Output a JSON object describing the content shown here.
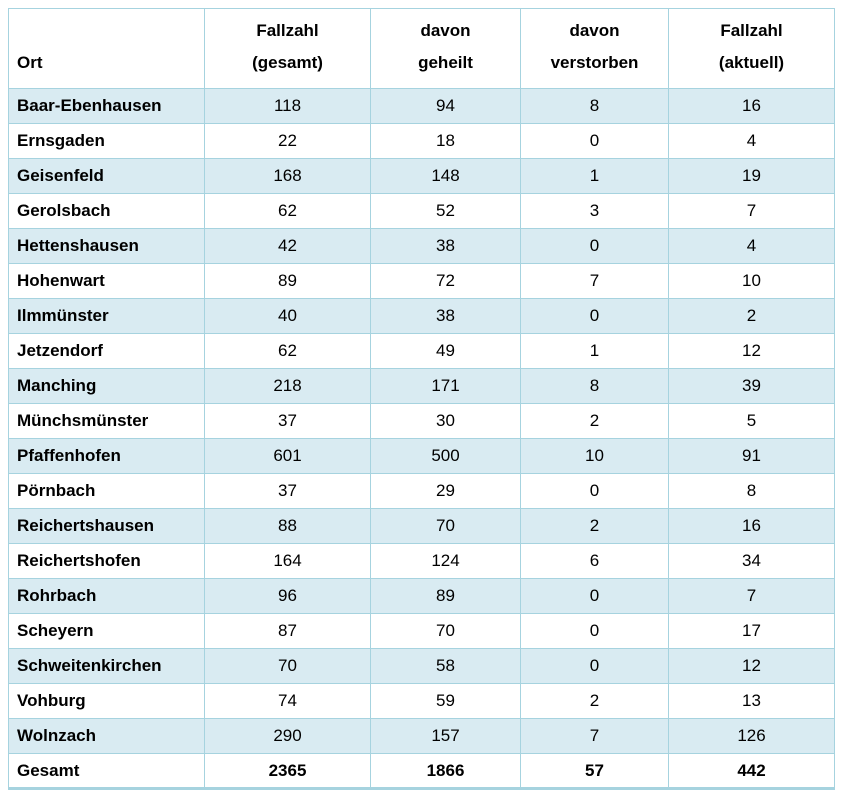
{
  "chart_data": {
    "type": "table",
    "columns": [
      "Ort",
      "Fallzahl\n(gesamt)",
      "davon\ngeheilt",
      "davon\nverstorben",
      "Fallzahl\n(aktuell)"
    ],
    "rows": [
      [
        "Baar-Ebenhausen",
        118,
        94,
        8,
        16
      ],
      [
        "Ernsgaden",
        22,
        18,
        0,
        4
      ],
      [
        "Geisenfeld",
        168,
        148,
        1,
        19
      ],
      [
        "Gerolsbach",
        62,
        52,
        3,
        7
      ],
      [
        "Hettenshausen",
        42,
        38,
        0,
        4
      ],
      [
        "Hohenwart",
        89,
        72,
        7,
        10
      ],
      [
        "Ilmmünster",
        40,
        38,
        0,
        2
      ],
      [
        "Jetzendorf",
        62,
        49,
        1,
        12
      ],
      [
        "Manching",
        218,
        171,
        8,
        39
      ],
      [
        "Münchsmünster",
        37,
        30,
        2,
        5
      ],
      [
        "Pfaffenhofen",
        601,
        500,
        10,
        91
      ],
      [
        "Pörnbach",
        37,
        29,
        0,
        8
      ],
      [
        "Reichertshausen",
        88,
        70,
        2,
        16
      ],
      [
        "Reichertshofen",
        164,
        124,
        6,
        34
      ],
      [
        "Rohrbach",
        96,
        89,
        0,
        7
      ],
      [
        "Scheyern",
        87,
        70,
        0,
        17
      ],
      [
        "Schweitenkirchen",
        70,
        58,
        0,
        12
      ],
      [
        "Vohburg",
        74,
        59,
        2,
        13
      ],
      [
        "Wolnzach",
        290,
        157,
        7,
        126
      ]
    ],
    "total_row": [
      "Gesamt",
      2365,
      1866,
      57,
      442
    ],
    "layout": {
      "zebra_start": "shaded",
      "total_row_style": "bold-white",
      "grid": "on"
    }
  },
  "colors": {
    "row_shade": "#d9ebf2",
    "border": "#a6d3df",
    "header_separator": "#74b7c9",
    "text": "#000000",
    "background": "#ffffff"
  }
}
